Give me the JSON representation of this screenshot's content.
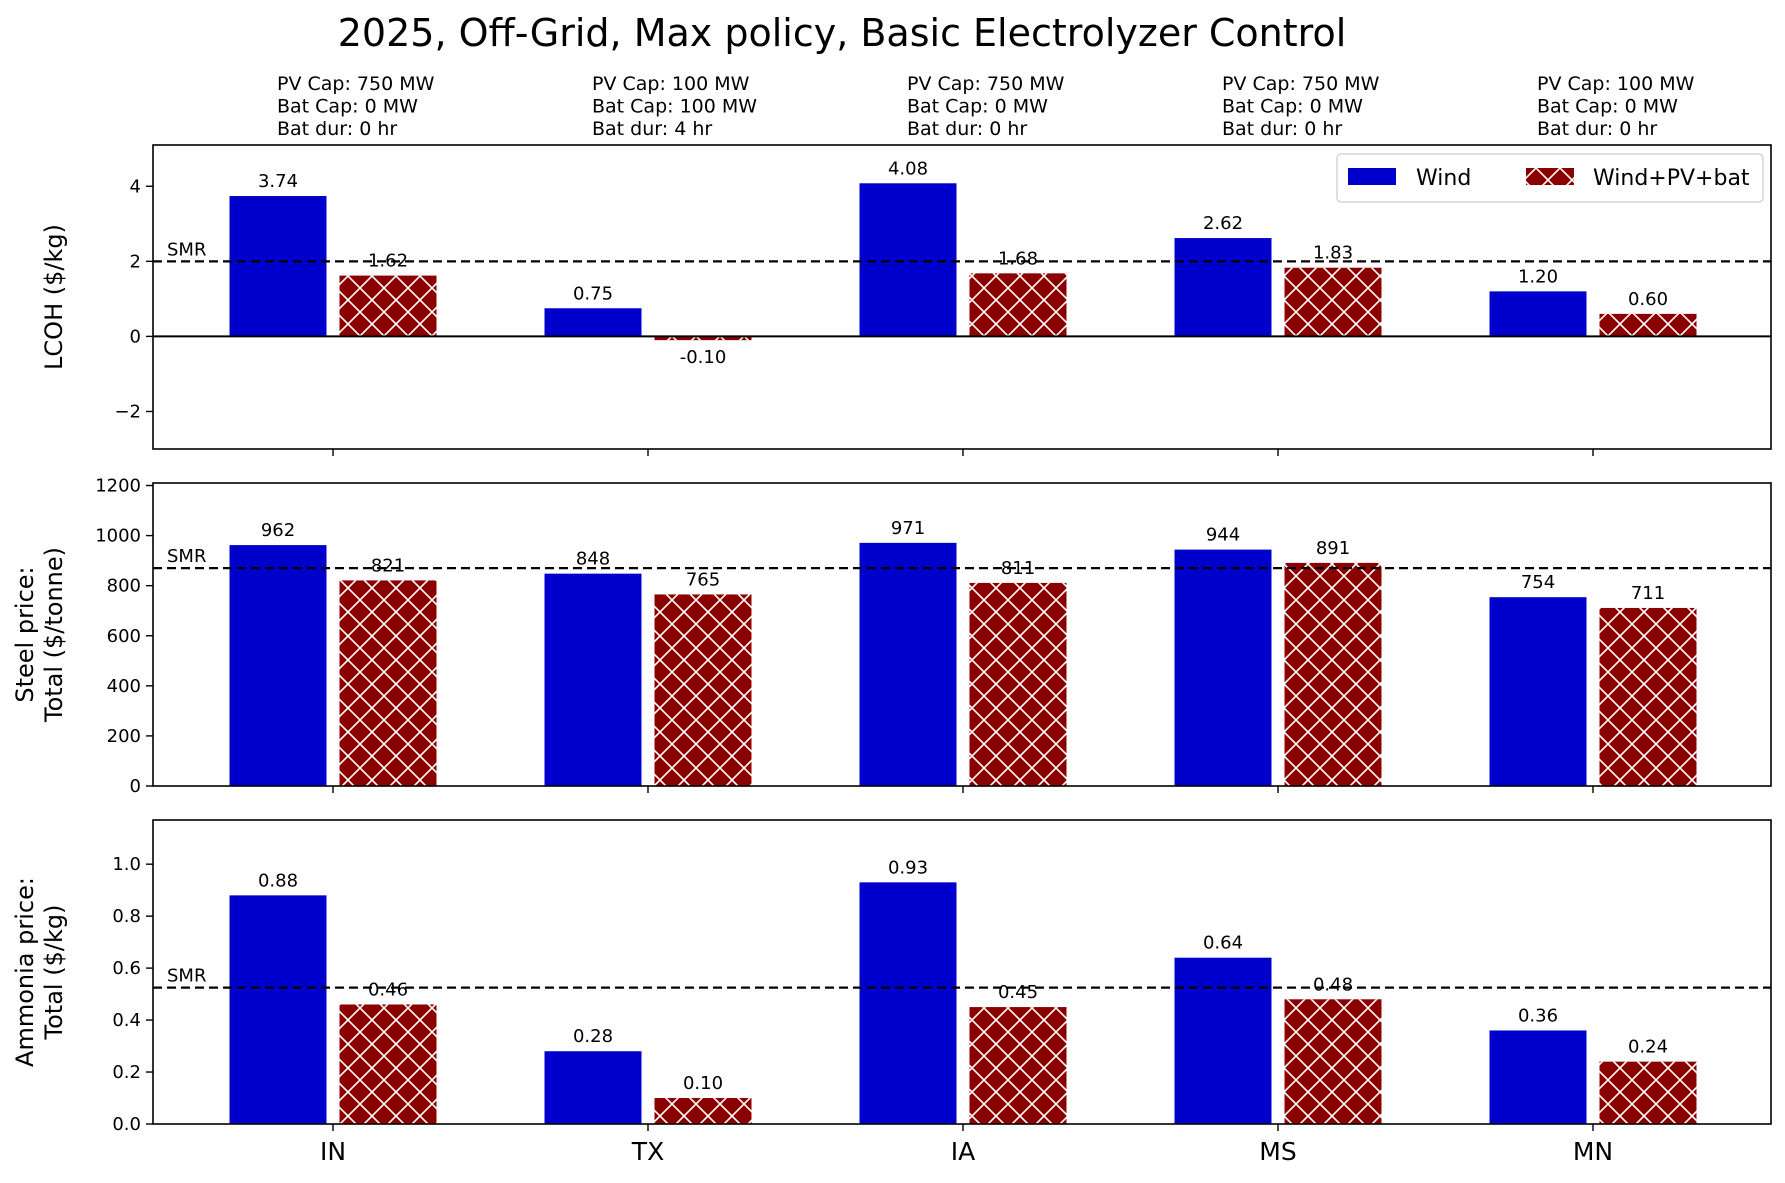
{
  "title": "2025, Off-Grid, Max policy, Basic Electrolyzer Control",
  "colors": {
    "wind": "#0000CC",
    "hybrid": "#8B0000",
    "hatch": "#ffffff"
  },
  "legend": {
    "wind": "Wind",
    "hybrid": "Wind+PV+bat"
  },
  "smr_label": "SMR",
  "states": [
    "IN",
    "TX",
    "IA",
    "MS",
    "MN"
  ],
  "annotations": [
    [
      "PV Cap: 750 MW",
      "Bat Cap: 0 MW",
      "Bat dur: 0 hr"
    ],
    [
      "PV Cap: 100 MW",
      "Bat Cap: 100 MW",
      "Bat dur: 4 hr"
    ],
    [
      "PV Cap: 750 MW",
      "Bat Cap: 0 MW",
      "Bat dur: 0 hr"
    ],
    [
      "PV Cap: 750 MW",
      "Bat Cap: 0 MW",
      "Bat dur: 0 hr"
    ],
    [
      "PV Cap: 100 MW",
      "Bat Cap: 0 MW",
      "Bat dur: 0 hr"
    ]
  ],
  "chart_data": [
    {
      "type": "bar",
      "ylabel": [
        "LCOH ($/kg)"
      ],
      "ylim": [
        -3,
        5.1
      ],
      "yticks": [
        -2,
        0,
        2,
        4
      ],
      "tick_decimals": 0,
      "label_decimals": 2,
      "smr": 2.0,
      "zero_line": true,
      "legend": "top-right",
      "categories": [
        "IN",
        "TX",
        "IA",
        "MS",
        "MN"
      ],
      "series": [
        {
          "name": "Wind",
          "values": [
            3.74,
            0.75,
            4.08,
            2.62,
            1.2
          ]
        },
        {
          "name": "Wind+PV+bat",
          "values": [
            1.62,
            -0.1,
            1.68,
            1.83,
            0.6
          ]
        }
      ]
    },
    {
      "type": "bar",
      "ylabel": [
        "Steel price:",
        "Total ($/tonne)"
      ],
      "ylim": [
        0,
        1210
      ],
      "yticks": [
        0,
        200,
        400,
        600,
        800,
        1000,
        1200
      ],
      "tick_decimals": 0,
      "label_decimals": 0,
      "smr": 870,
      "zero_line": false,
      "categories": [
        "IN",
        "TX",
        "IA",
        "MS",
        "MN"
      ],
      "series": [
        {
          "name": "Wind",
          "values": [
            962,
            848,
            971,
            944,
            754
          ]
        },
        {
          "name": "Wind+PV+bat",
          "values": [
            821,
            765,
            811,
            891,
            711
          ]
        }
      ]
    },
    {
      "type": "bar",
      "ylabel": [
        "Ammonia price:",
        "Total ($/kg)"
      ],
      "ylim": [
        0,
        1.17
      ],
      "yticks": [
        0.0,
        0.2,
        0.4,
        0.6,
        0.8,
        1.0
      ],
      "tick_decimals": 1,
      "label_decimals": 2,
      "smr": 0.525,
      "zero_line": false,
      "categories": [
        "IN",
        "TX",
        "IA",
        "MS",
        "MN"
      ],
      "series": [
        {
          "name": "Wind",
          "values": [
            0.88,
            0.28,
            0.93,
            0.64,
            0.36
          ]
        },
        {
          "name": "Wind+PV+bat",
          "values": [
            0.46,
            0.1,
            0.45,
            0.48,
            0.24
          ]
        }
      ]
    }
  ]
}
